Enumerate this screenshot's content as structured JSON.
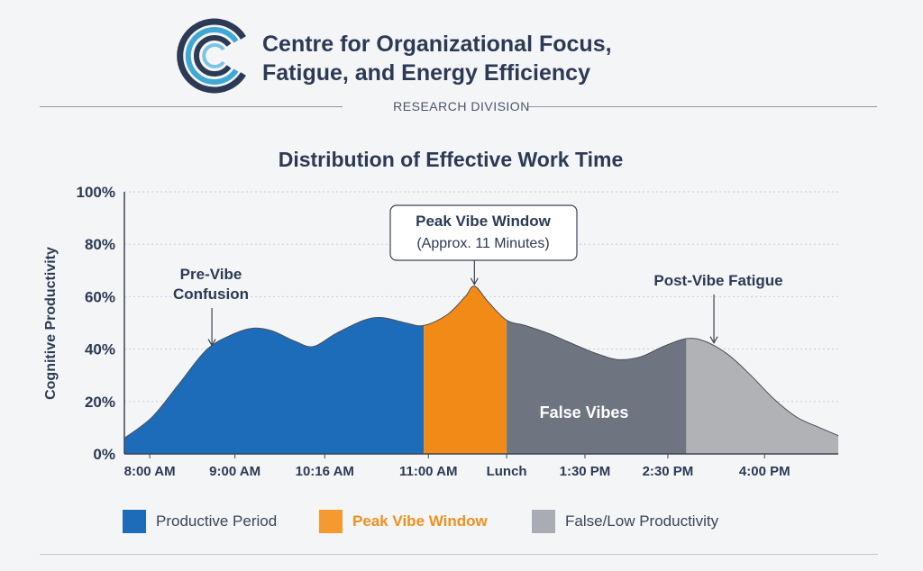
{
  "header": {
    "org_line1": "Centre for Organizational Focus,",
    "org_line2": "Fatigue, and Energy Efficiency",
    "division": "RESEARCH DIVISION"
  },
  "colors": {
    "productive": "#1d6cba",
    "peak": "#f59a2e",
    "false_low": "#6e7480",
    "post_fatigue": "#b0b2b6",
    "title_text": "#2c3a55",
    "logo_dark": "#2c3a55",
    "logo_light": "#3fa9d4"
  },
  "chart_data": {
    "type": "area",
    "title": "Distribution of Effective Work Time",
    "xlabel": "",
    "ylabel": "Cognitive Productivity",
    "ylim": [
      0,
      100
    ],
    "yticks": [
      "0%",
      "20%",
      "40%",
      "60%",
      "80%",
      "100%"
    ],
    "xtick_labels": [
      "8:00 AM",
      "9:00 AM",
      "10:16 AM",
      "11:00 AM",
      "Lunch",
      "1:30 PM",
      "2:30 PM",
      "4:00 PM"
    ],
    "grid": true,
    "series_points": [
      [
        0,
        6
      ],
      [
        0.6,
        14
      ],
      [
        1.2,
        27
      ],
      [
        1.8,
        40
      ],
      [
        2.4,
        46
      ],
      [
        2.8,
        48
      ],
      [
        3.2,
        47
      ],
      [
        3.7,
        43
      ],
      [
        4.1,
        41
      ],
      [
        4.6,
        46
      ],
      [
        5.2,
        51
      ],
      [
        5.6,
        52
      ],
      [
        6.1,
        50
      ],
      [
        6.5,
        49
      ],
      [
        7,
        53
      ],
      [
        7.4,
        60
      ],
      [
        7.6,
        64
      ],
      [
        7.9,
        58
      ],
      [
        8.3,
        51
      ],
      [
        8.7,
        49
      ],
      [
        9.2,
        46
      ],
      [
        9.6,
        43
      ],
      [
        10,
        40
      ],
      [
        10.3,
        38
      ],
      [
        10.7,
        36
      ],
      [
        11.2,
        37
      ],
      [
        11.7,
        41
      ],
      [
        12.2,
        44
      ],
      [
        12.6,
        43
      ],
      [
        13.1,
        38
      ],
      [
        13.6,
        30
      ],
      [
        14.1,
        21
      ],
      [
        14.6,
        14
      ],
      [
        15.1,
        10
      ],
      [
        15.5,
        7
      ]
    ],
    "regions": [
      {
        "name": "Productive Period",
        "from": 0,
        "to": 6.5,
        "color": "#1d6cba"
      },
      {
        "name": "Peak Vibe Window",
        "from": 6.5,
        "to": 8.3,
        "color": "#f59a2e"
      },
      {
        "name": "False/Low Productivity",
        "from": 8.3,
        "to": 12.2,
        "color": "#6e7480"
      },
      {
        "name": "Post-Vibe Fatigue",
        "from": 12.2,
        "to": 15.5,
        "color": "#b0b2b6"
      }
    ],
    "annotations": [
      {
        "lines": [
          "Pre-Vibe",
          "Confusion"
        ],
        "target": [
          1.9,
          40
        ]
      },
      {
        "lines": [
          "Peak Vibe Window",
          "(Approx. 11 Minutes)"
        ],
        "target": [
          7.6,
          64
        ],
        "boxed": true
      },
      {
        "lines": [
          "Post-Vibe Fatigue"
        ],
        "target": [
          12.8,
          41
        ]
      }
    ],
    "region_label": "False Vibes",
    "legend": [
      {
        "label": "Productive Period",
        "color": "#1d6cba",
        "label_color": "#3a465a"
      },
      {
        "label": "Peak Vibe Window",
        "color": "#f59a2e",
        "label_color": "#f0901c"
      },
      {
        "label": "False/Low Productivity",
        "color": "#a9adb3",
        "label_color": "#3a465a"
      }
    ]
  }
}
